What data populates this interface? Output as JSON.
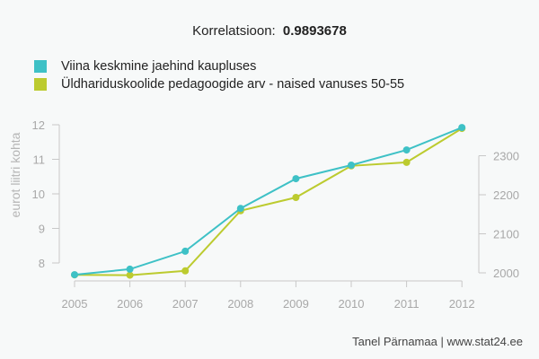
{
  "header": {
    "correlation_label": "Korrelatsioon:",
    "correlation_value": "0.9893678"
  },
  "legend": [
    {
      "label": "Viina keskmine jaehind kaupluses",
      "color": "#3ec1c6"
    },
    {
      "label": "Üldhariduskoolide pedagoogide arv - naised vanuses 50-55",
      "color": "#bccb2f"
    }
  ],
  "footer": {
    "credit": "Tanel Pärnamaa | www.stat24.ee"
  },
  "chart_data": {
    "type": "line",
    "title": "Korrelatsioon: 0.9893678",
    "xlabel": "",
    "ylabel": "eurot liitri kohta",
    "ylabel_right": "",
    "categories": [
      "2005",
      "2006",
      "2007",
      "2008",
      "2009",
      "2010",
      "2011",
      "2012"
    ],
    "series": [
      {
        "name": "Viina keskmine jaehind kaupluses",
        "axis": "left",
        "color": "#3ec1c6",
        "values": [
          7.66,
          7.82,
          8.34,
          9.58,
          10.44,
          10.83,
          11.27,
          11.92
        ]
      },
      {
        "name": "Üldhariduskoolide pedagoogide arv - naised vanuses 50-55",
        "axis": "right",
        "color": "#bccb2f",
        "values": [
          1995,
          1994,
          2005,
          2159,
          2193,
          2274,
          2283,
          2370
        ]
      }
    ],
    "y_left": {
      "ticks": [
        8,
        9,
        10,
        11,
        12
      ],
      "range": [
        7.5,
        12
      ]
    },
    "y_right": {
      "ticks": [
        2000,
        2100,
        2200,
        2300
      ],
      "range": [
        1990,
        2380
      ]
    },
    "grid": false,
    "legend_position": "top-left"
  }
}
